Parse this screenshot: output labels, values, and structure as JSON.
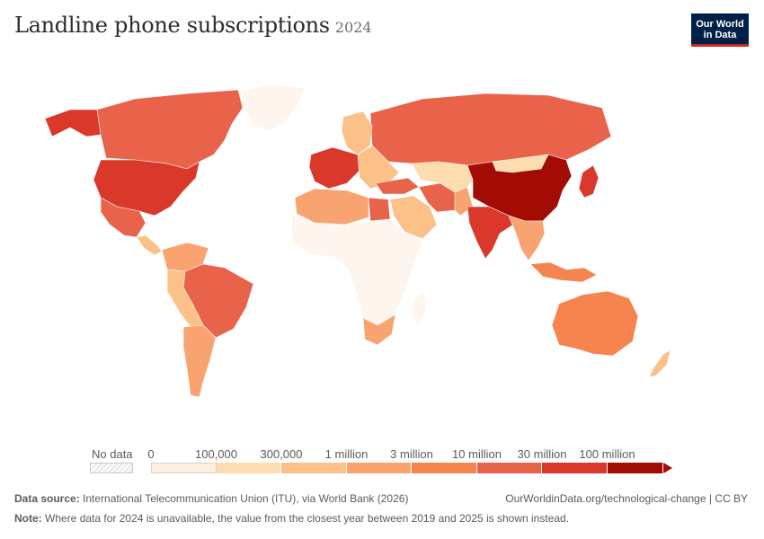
{
  "header": {
    "title": "Landline phone subscriptions",
    "year": "2024"
  },
  "logo": {
    "line1": "Our World",
    "line2": "in Data"
  },
  "legend": {
    "no_data_label": "No data",
    "tick_labels": [
      "0",
      "100,000",
      "300,000",
      "1 million",
      "3 million",
      "10 million",
      "30 million",
      "100 million"
    ],
    "bin_colors": [
      "#fef0e1",
      "#fddcb0",
      "#fbc189",
      "#f9a470",
      "#f6844f",
      "#e9634b",
      "#d9382a",
      "#a30b05"
    ],
    "arrow_color": "#a30b05"
  },
  "footer": {
    "source_label": "Data source:",
    "source_text": "International Telecommunication Union (ITU), via World Bank (2026)",
    "attribution": "OurWorldinData.org/technological-change | CC BY",
    "note_label": "Note:",
    "note_text": "Where data for 2024 is unavailable, the value from the closest year between 2019 and 2025 is shown instead."
  },
  "map_regions": [
    {
      "name": "canada",
      "color": "#e9634b"
    },
    {
      "name": "united-states",
      "color": "#d9382a"
    },
    {
      "name": "alaska",
      "color": "#d9382a"
    },
    {
      "name": "greenland",
      "color": "#fef6ee"
    },
    {
      "name": "mexico",
      "color": "#e9634b"
    },
    {
      "name": "central-america",
      "color": "#fbc189"
    },
    {
      "name": "colombia-venezuela",
      "color": "#f9a470"
    },
    {
      "name": "brazil",
      "color": "#e9634b"
    },
    {
      "name": "peru-bolivia",
      "color": "#fbc189"
    },
    {
      "name": "argentina-chile",
      "color": "#f9a470"
    },
    {
      "name": "russia",
      "color": "#e9634b"
    },
    {
      "name": "western-europe",
      "color": "#d9382a"
    },
    {
      "name": "scandinavia",
      "color": "#fbc189"
    },
    {
      "name": "eastern-europe",
      "color": "#fbc189"
    },
    {
      "name": "north-africa",
      "color": "#f9a470"
    },
    {
      "name": "egypt",
      "color": "#e9634b"
    },
    {
      "name": "sub-saharan-africa",
      "color": "#fef6ee"
    },
    {
      "name": "south-africa",
      "color": "#f9a470"
    },
    {
      "name": "middle-east",
      "color": "#fbc189"
    },
    {
      "name": "iran",
      "color": "#e9634b"
    },
    {
      "name": "central-asia",
      "color": "#fddcb0"
    },
    {
      "name": "china",
      "color": "#a30b05"
    },
    {
      "name": "mongolia",
      "color": "#fddcb0"
    },
    {
      "name": "india",
      "color": "#d9382a"
    },
    {
      "name": "southeast-asia",
      "color": "#f9a470"
    },
    {
      "name": "japan",
      "color": "#d9382a"
    },
    {
      "name": "indonesia",
      "color": "#f6844f"
    },
    {
      "name": "australia",
      "color": "#f6844f"
    },
    {
      "name": "new-zealand",
      "color": "#fbc189"
    },
    {
      "name": "madagascar",
      "color": "#fef6ee"
    },
    {
      "name": "turkey",
      "color": "#e9634b"
    },
    {
      "name": "pakistan",
      "color": "#f9a470"
    }
  ]
}
